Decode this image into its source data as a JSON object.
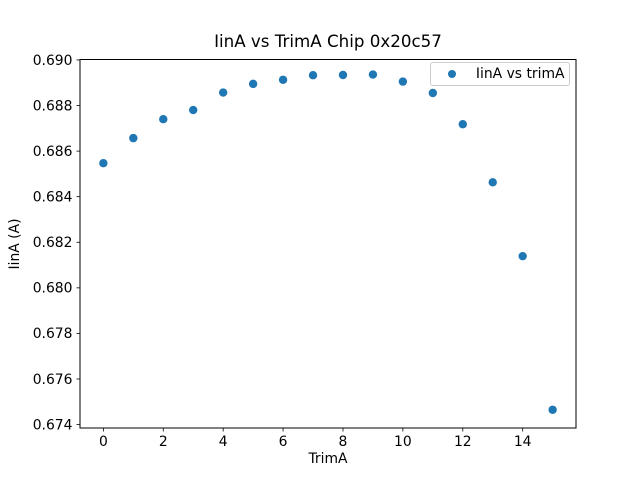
{
  "figure": {
    "kind": "matplotlib-scatter-figure"
  },
  "chart_data": {
    "type": "scatter",
    "title": "IinA vs TrimA Chip 0x20c57",
    "xlabel": "TrimA",
    "ylabel": "IinA (A)",
    "legend": [
      "IinA vs trimA"
    ],
    "legend_position": "upper right",
    "marker_color": "#1f77b4",
    "x": [
      0,
      1,
      2,
      3,
      4,
      5,
      6,
      7,
      8,
      9,
      10,
      11,
      12,
      13,
      14,
      15
    ],
    "y": [
      0.68547,
      0.68657,
      0.6874,
      0.6878,
      0.68857,
      0.68895,
      0.68913,
      0.68933,
      0.68934,
      0.68936,
      0.68905,
      0.68855,
      0.68718,
      0.68463,
      0.68139,
      0.67465
    ],
    "xlim": [
      -0.78,
      15.78
    ],
    "ylim": [
      0.67385,
      0.69002
    ],
    "xticks": [
      0,
      2,
      4,
      6,
      8,
      10,
      12,
      14
    ],
    "yticks": [
      0.674,
      0.676,
      0.678,
      0.68,
      0.682,
      0.684,
      0.686,
      0.688,
      0.69
    ],
    "grid": false
  }
}
